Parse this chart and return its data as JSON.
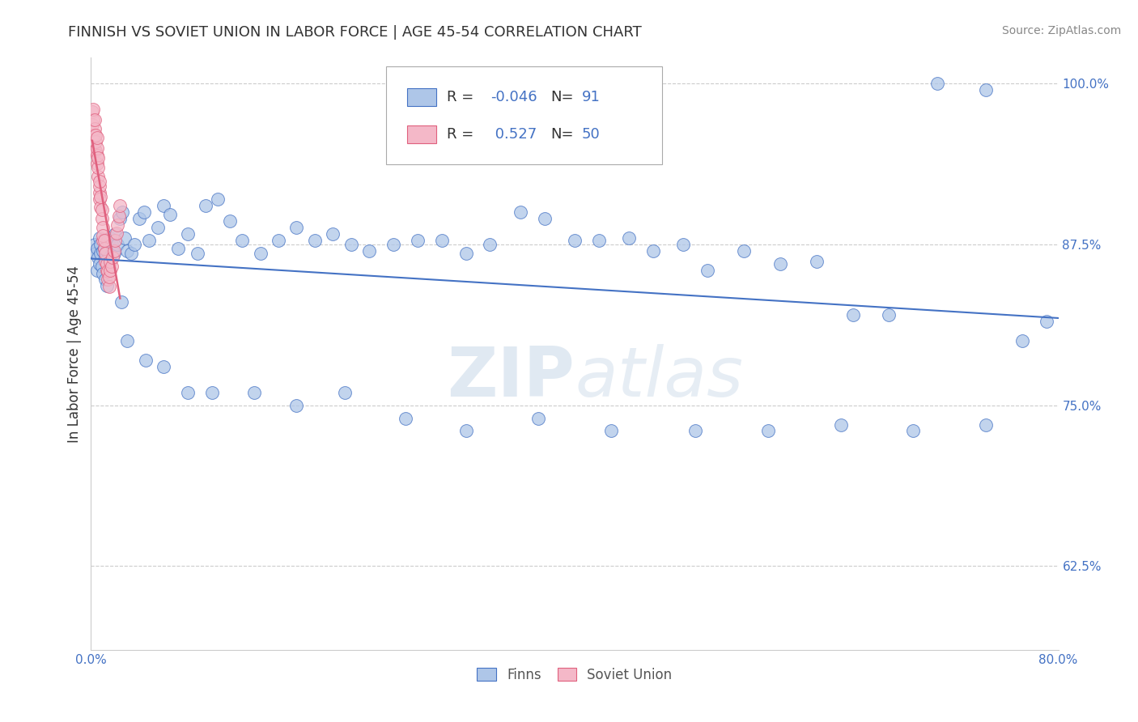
{
  "title": "FINNISH VS SOVIET UNION IN LABOR FORCE | AGE 45-54 CORRELATION CHART",
  "source": "Source: ZipAtlas.com",
  "ylabel": "In Labor Force | Age 45-54",
  "xlim": [
    0.0,
    0.8
  ],
  "ylim": [
    0.56,
    1.02
  ],
  "yticks": [
    0.625,
    0.75,
    0.875,
    1.0
  ],
  "ytick_labels": [
    "62.5%",
    "75.0%",
    "87.5%",
    "100.0%"
  ],
  "xticks": [
    0.0,
    0.1,
    0.2,
    0.3,
    0.4,
    0.5,
    0.6,
    0.7,
    0.8
  ],
  "xtick_labels": [
    "0.0%",
    "",
    "",
    "",
    "",
    "",
    "",
    "",
    "80.0%"
  ],
  "finns_R": "-0.046",
  "finns_N": "91",
  "soviet_R": "0.527",
  "soviet_N": "50",
  "legend_finn_color": "#aec6e8",
  "legend_soviet_color": "#f4b8c8",
  "finn_line_color": "#4472C4",
  "soviet_line_color": "#E0607E",
  "finn_dot_color": "#aec6e8",
  "soviet_dot_color": "#f4b8c8",
  "background_color": "#ffffff",
  "grid_color": "#cccccc",
  "watermark": "ZIPatlas",
  "finns_x": [
    0.003,
    0.004,
    0.005,
    0.005,
    0.006,
    0.007,
    0.007,
    0.008,
    0.008,
    0.009,
    0.01,
    0.01,
    0.011,
    0.012,
    0.012,
    0.013,
    0.013,
    0.014,
    0.015,
    0.016,
    0.017,
    0.018,
    0.019,
    0.02,
    0.022,
    0.024,
    0.026,
    0.028,
    0.03,
    0.033,
    0.036,
    0.04,
    0.044,
    0.048,
    0.055,
    0.06,
    0.065,
    0.072,
    0.08,
    0.088,
    0.095,
    0.105,
    0.115,
    0.125,
    0.14,
    0.155,
    0.17,
    0.185,
    0.2,
    0.215,
    0.23,
    0.25,
    0.27,
    0.29,
    0.31,
    0.33,
    0.355,
    0.375,
    0.4,
    0.42,
    0.445,
    0.465,
    0.49,
    0.51,
    0.54,
    0.57,
    0.6,
    0.63,
    0.66,
    0.7,
    0.74,
    0.77,
    0.79,
    0.025,
    0.03,
    0.045,
    0.06,
    0.08,
    0.1,
    0.135,
    0.17,
    0.21,
    0.26,
    0.31,
    0.37,
    0.43,
    0.5,
    0.56,
    0.62,
    0.68,
    0.74
  ],
  "finns_y": [
    0.875,
    0.868,
    0.872,
    0.855,
    0.865,
    0.86,
    0.88,
    0.875,
    0.868,
    0.858,
    0.87,
    0.852,
    0.872,
    0.865,
    0.848,
    0.87,
    0.843,
    0.878,
    0.865,
    0.88,
    0.875,
    0.87,
    0.868,
    0.883,
    0.875,
    0.895,
    0.9,
    0.88,
    0.87,
    0.868,
    0.875,
    0.895,
    0.9,
    0.878,
    0.888,
    0.905,
    0.898,
    0.872,
    0.883,
    0.868,
    0.905,
    0.91,
    0.893,
    0.878,
    0.868,
    0.878,
    0.888,
    0.878,
    0.883,
    0.875,
    0.87,
    0.875,
    0.878,
    0.878,
    0.868,
    0.875,
    0.9,
    0.895,
    0.878,
    0.878,
    0.88,
    0.87,
    0.875,
    0.855,
    0.87,
    0.86,
    0.862,
    0.82,
    0.82,
    1.0,
    0.995,
    0.8,
    0.815,
    0.83,
    0.8,
    0.785,
    0.78,
    0.76,
    0.76,
    0.76,
    0.75,
    0.76,
    0.74,
    0.73,
    0.74,
    0.73,
    0.73,
    0.73,
    0.735,
    0.73,
    0.735
  ],
  "soviet_x": [
    0.001,
    0.001,
    0.002,
    0.002,
    0.002,
    0.003,
    0.003,
    0.003,
    0.003,
    0.004,
    0.004,
    0.004,
    0.005,
    0.005,
    0.005,
    0.005,
    0.006,
    0.006,
    0.006,
    0.007,
    0.007,
    0.007,
    0.007,
    0.008,
    0.008,
    0.009,
    0.009,
    0.01,
    0.01,
    0.01,
    0.011,
    0.011,
    0.012,
    0.012,
    0.013,
    0.013,
    0.014,
    0.014,
    0.015,
    0.015,
    0.016,
    0.016,
    0.017,
    0.018,
    0.019,
    0.02,
    0.021,
    0.022,
    0.023,
    0.024
  ],
  "soviet_y": [
    0.968,
    0.978,
    0.96,
    0.972,
    0.98,
    0.948,
    0.96,
    0.965,
    0.972,
    0.948,
    0.955,
    0.96,
    0.938,
    0.944,
    0.95,
    0.958,
    0.928,
    0.935,
    0.942,
    0.915,
    0.92,
    0.91,
    0.924,
    0.904,
    0.912,
    0.895,
    0.902,
    0.888,
    0.878,
    0.882,
    0.872,
    0.878,
    0.862,
    0.868,
    0.855,
    0.86,
    0.848,
    0.854,
    0.842,
    0.85,
    0.855,
    0.862,
    0.858,
    0.865,
    0.87,
    0.878,
    0.884,
    0.89,
    0.897,
    0.905
  ]
}
